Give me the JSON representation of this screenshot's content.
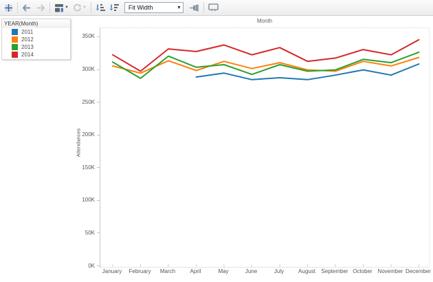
{
  "toolbar": {
    "fit_dropdown_value": "Fit Width",
    "icons": [
      "tableau-logo",
      "back-arrow",
      "forward-arrow",
      "new-data-view",
      "refresh",
      "sort-ascending",
      "sort-descending",
      "pin",
      "presentation-mode"
    ]
  },
  "legend": {
    "title": "YEAR(Month)",
    "items": [
      {
        "label": "2011",
        "color": "#1f77b4"
      },
      {
        "label": "2012",
        "color": "#ff7f0e"
      },
      {
        "label": "2013",
        "color": "#2ca02c"
      },
      {
        "label": "2014",
        "color": "#d62728"
      }
    ]
  },
  "chart_data": {
    "type": "line",
    "title": "Month",
    "xlabel": "",
    "ylabel": "Attendances",
    "unit": "thousands (K)",
    "ylim": [
      0,
      350
    ],
    "grid": false,
    "legend_position": "floating card top-left",
    "categories": [
      "January",
      "February",
      "March",
      "April",
      "May",
      "June",
      "July",
      "August",
      "September",
      "October",
      "November",
      "December"
    ],
    "y_ticks": [
      {
        "label": "0K",
        "value": 0
      },
      {
        "label": "50K",
        "value": 50
      },
      {
        "label": "100K",
        "value": 100
      },
      {
        "label": "150K",
        "value": 150
      },
      {
        "label": "200K",
        "value": 200
      },
      {
        "label": "250K",
        "value": 250
      },
      {
        "label": "300K",
        "value": 300
      },
      {
        "label": "350K",
        "value": 350
      }
    ],
    "series": [
      {
        "name": "2011",
        "color": "#1f77b4",
        "values": [
          null,
          null,
          null,
          289,
          295,
          285,
          288,
          285,
          292,
          300,
          292,
          309
        ]
      },
      {
        "name": "2012",
        "color": "#ff7f0e",
        "values": [
          306,
          295,
          314,
          299,
          313,
          302,
          311,
          300,
          298,
          313,
          306,
          319
        ]
      },
      {
        "name": "2013",
        "color": "#2ca02c",
        "values": [
          312,
          287,
          321,
          304,
          308,
          293,
          308,
          298,
          300,
          316,
          311,
          327
        ]
      },
      {
        "name": "2014",
        "color": "#d62728",
        "values": [
          323,
          298,
          332,
          328,
          338,
          323,
          334,
          313,
          318,
          331,
          323,
          346
        ]
      }
    ]
  }
}
